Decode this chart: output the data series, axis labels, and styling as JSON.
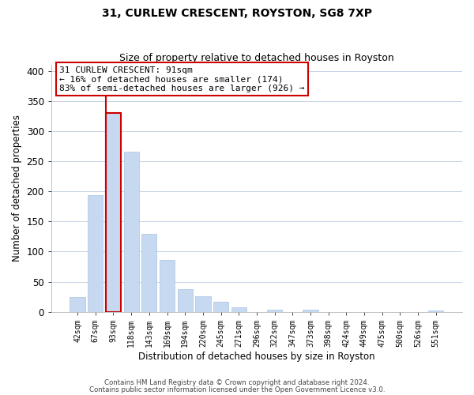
{
  "title": "31, CURLEW CRESCENT, ROYSTON, SG8 7XP",
  "subtitle": "Size of property relative to detached houses in Royston",
  "xlabel": "Distribution of detached houses by size in Royston",
  "ylabel": "Number of detached properties",
  "bar_labels": [
    "42sqm",
    "67sqm",
    "93sqm",
    "118sqm",
    "143sqm",
    "169sqm",
    "194sqm",
    "220sqm",
    "245sqm",
    "271sqm",
    "296sqm",
    "322sqm",
    "347sqm",
    "373sqm",
    "398sqm",
    "424sqm",
    "449sqm",
    "475sqm",
    "500sqm",
    "526sqm",
    "551sqm"
  ],
  "bar_values": [
    25,
    194,
    330,
    266,
    130,
    86,
    38,
    26,
    17,
    8,
    0,
    4,
    0,
    3,
    0,
    0,
    0,
    0,
    0,
    0,
    2
  ],
  "bar_color": "#c6d9f0",
  "bar_edge_color": "#a8c4e0",
  "highlight_bar_index": 2,
  "highlight_color": "#cc0000",
  "annotation_title": "31 CURLEW CRESCENT: 91sqm",
  "annotation_line1": "← 16% of detached houses are smaller (174)",
  "annotation_line2": "83% of semi-detached houses are larger (926) →",
  "annotation_box_color": "#ffffff",
  "annotation_box_edge": "#cc0000",
  "ylim": [
    0,
    410
  ],
  "yticks": [
    0,
    50,
    100,
    150,
    200,
    250,
    300,
    350,
    400
  ],
  "background_color": "#ffffff",
  "grid_color": "#c8d4e8",
  "footer_line1": "Contains HM Land Registry data © Crown copyright and database right 2024.",
  "footer_line2": "Contains public sector information licensed under the Open Government Licence v3.0."
}
